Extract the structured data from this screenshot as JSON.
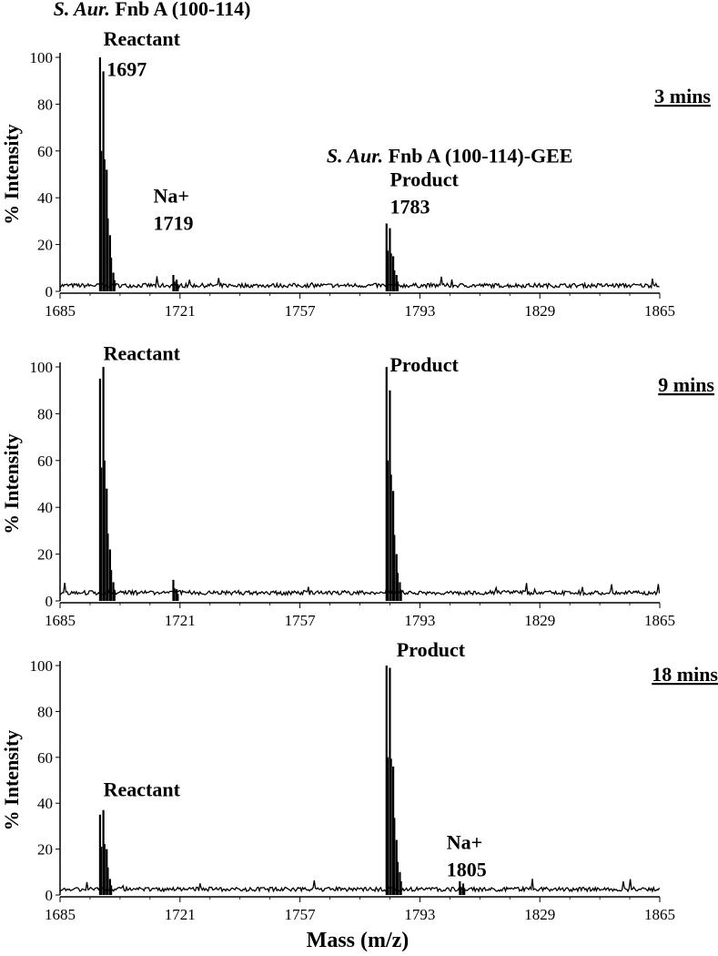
{
  "chart_data": {
    "type": "line",
    "title": "",
    "xlabel": "Mass (m/z)",
    "ylabel": "% Intensity",
    "xlim": [
      1685,
      1865
    ],
    "ylim": [
      0,
      100
    ],
    "x_ticks": [
      1685,
      1721,
      1757,
      1793,
      1829,
      1865
    ],
    "y_ticks": [
      0,
      20,
      40,
      60,
      80,
      100
    ],
    "panels": [
      {
        "time_label": "3 mins",
        "baseline": 2,
        "peaks": [
          {
            "x": 1697,
            "y": 100
          },
          {
            "x": 1698,
            "y": 94
          },
          {
            "x": 1699,
            "y": 52
          },
          {
            "x": 1700,
            "y": 24
          },
          {
            "x": 1701,
            "y": 8
          },
          {
            "x": 1719,
            "y": 7
          },
          {
            "x": 1720,
            "y": 5
          },
          {
            "x": 1783,
            "y": 29
          },
          {
            "x": 1784,
            "y": 27
          },
          {
            "x": 1785,
            "y": 15
          },
          {
            "x": 1786,
            "y": 7
          }
        ],
        "annotations": [
          {
            "lines": [
              "S. Aur. Fnb A (100-114)"
            ],
            "italic_prefix": "S. Aur.",
            "x": 1683,
            "y": 118
          },
          {
            "lines": [
              "Reactant"
            ],
            "x": 1698,
            "y": 105
          },
          {
            "lines": [
              "1697"
            ],
            "x": 1699,
            "y": 92
          },
          {
            "lines": [
              "Na+",
              "1719"
            ],
            "x": 1713,
            "y": 38
          },
          {
            "lines": [
              "S. Aur. Fnb A (100-114)-GEE"
            ],
            "italic_prefix": "S. Aur.",
            "x": 1765,
            "y": 55
          },
          {
            "lines": [
              "Product",
              "1783"
            ],
            "x": 1784,
            "y": 45
          }
        ]
      },
      {
        "time_label": "9 mins",
        "baseline": 3,
        "peaks": [
          {
            "x": 1697,
            "y": 95
          },
          {
            "x": 1698,
            "y": 100
          },
          {
            "x": 1699,
            "y": 48
          },
          {
            "x": 1700,
            "y": 22
          },
          {
            "x": 1701,
            "y": 8
          },
          {
            "x": 1719,
            "y": 9
          },
          {
            "x": 1720,
            "y": 5
          },
          {
            "x": 1783,
            "y": 100
          },
          {
            "x": 1784,
            "y": 90
          },
          {
            "x": 1785,
            "y": 47
          },
          {
            "x": 1786,
            "y": 20
          },
          {
            "x": 1787,
            "y": 8
          }
        ],
        "annotations": [
          {
            "lines": [
              "Reactant"
            ],
            "x": 1698,
            "y": 103
          },
          {
            "lines": [
              "Product"
            ],
            "x": 1784,
            "y": 98
          }
        ]
      },
      {
        "time_label": "18 mins",
        "baseline": 2,
        "peaks": [
          {
            "x": 1697,
            "y": 35
          },
          {
            "x": 1698,
            "y": 37
          },
          {
            "x": 1699,
            "y": 20
          },
          {
            "x": 1700,
            "y": 7
          },
          {
            "x": 1783,
            "y": 100
          },
          {
            "x": 1784,
            "y": 99
          },
          {
            "x": 1785,
            "y": 56
          },
          {
            "x": 1786,
            "y": 24
          },
          {
            "x": 1787,
            "y": 10
          },
          {
            "x": 1805,
            "y": 6
          },
          {
            "x": 1806,
            "y": 5
          }
        ],
        "annotations": [
          {
            "lines": [
              "Reactant"
            ],
            "x": 1698,
            "y": 43
          },
          {
            "lines": [
              "Product"
            ],
            "x": 1786,
            "y": 104
          },
          {
            "lines": [
              "Na+",
              "1805"
            ],
            "x": 1801,
            "y": 20
          }
        ]
      }
    ]
  }
}
